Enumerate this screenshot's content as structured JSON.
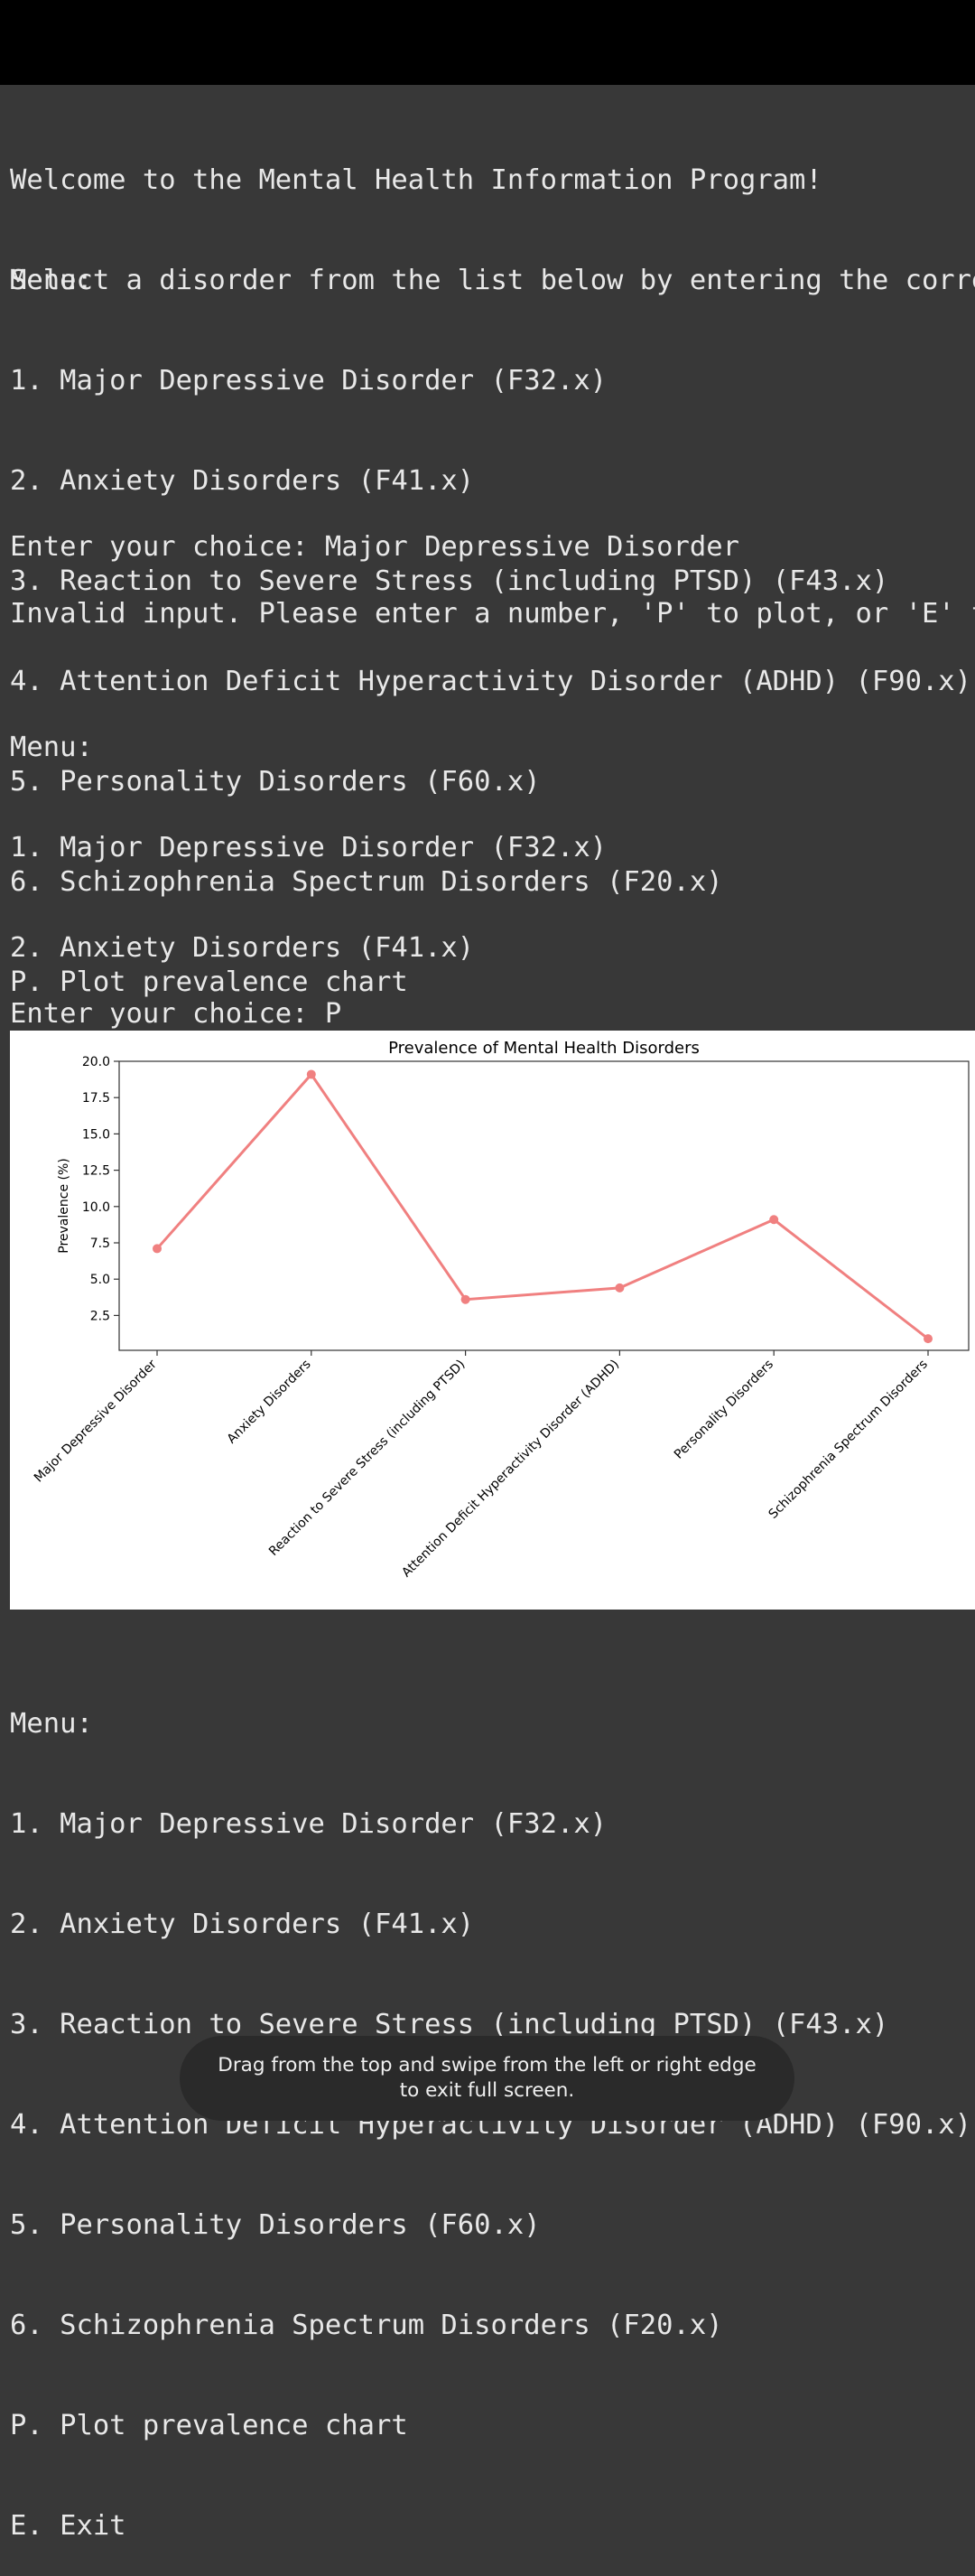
{
  "terminal": {
    "intro": [
      "Welcome to the Mental Health Information Program!",
      "Select a disorder from the list below by entering the corres"
    ],
    "menu": [
      "Menu:",
      "1. Major Depressive Disorder (F32.x)",
      "2. Anxiety Disorders (F41.x)",
      "3. Reaction to Severe Stress (including PTSD) (F43.x)",
      "4. Attention Deficit Hyperactivity Disorder (ADHD) (F90.x)",
      "5. Personality Disorders (F60.x)",
      "6. Schizophrenia Spectrum Disorders (F20.x)",
      "P. Plot prevalence chart",
      "E. Exit"
    ],
    "prompt1": "Enter your choice: Major Depressive Disorder",
    "error": "Invalid input. Please enter a number, 'P' to plot, or 'E' to",
    "prompt2": "Enter your choice: P"
  },
  "chart_data": {
    "type": "line",
    "title": "Prevalence of Mental Health Disorders",
    "xlabel": "",
    "ylabel": "Prevalence (%)",
    "categories": [
      "Major Depressive Disorder",
      "Anxiety Disorders",
      "Reaction to Severe Stress (including PTSD)",
      "Attention Deficit Hyperactivity Disorder (ADHD)",
      "Personality Disorders",
      "Schizophrenia Spectrum Disorders"
    ],
    "values": [
      7.1,
      19.1,
      3.6,
      4.4,
      9.1,
      0.9
    ],
    "ylim": [
      0.1,
      20.0
    ],
    "yticks": [
      "2.5",
      "5.0",
      "7.5",
      "10.0",
      "12.5",
      "15.0",
      "17.5",
      "20.0"
    ],
    "line_color": "#f08080",
    "grid": false
  },
  "toast": {
    "text": "Drag from the top and swipe from the left or right edge to exit full screen."
  }
}
